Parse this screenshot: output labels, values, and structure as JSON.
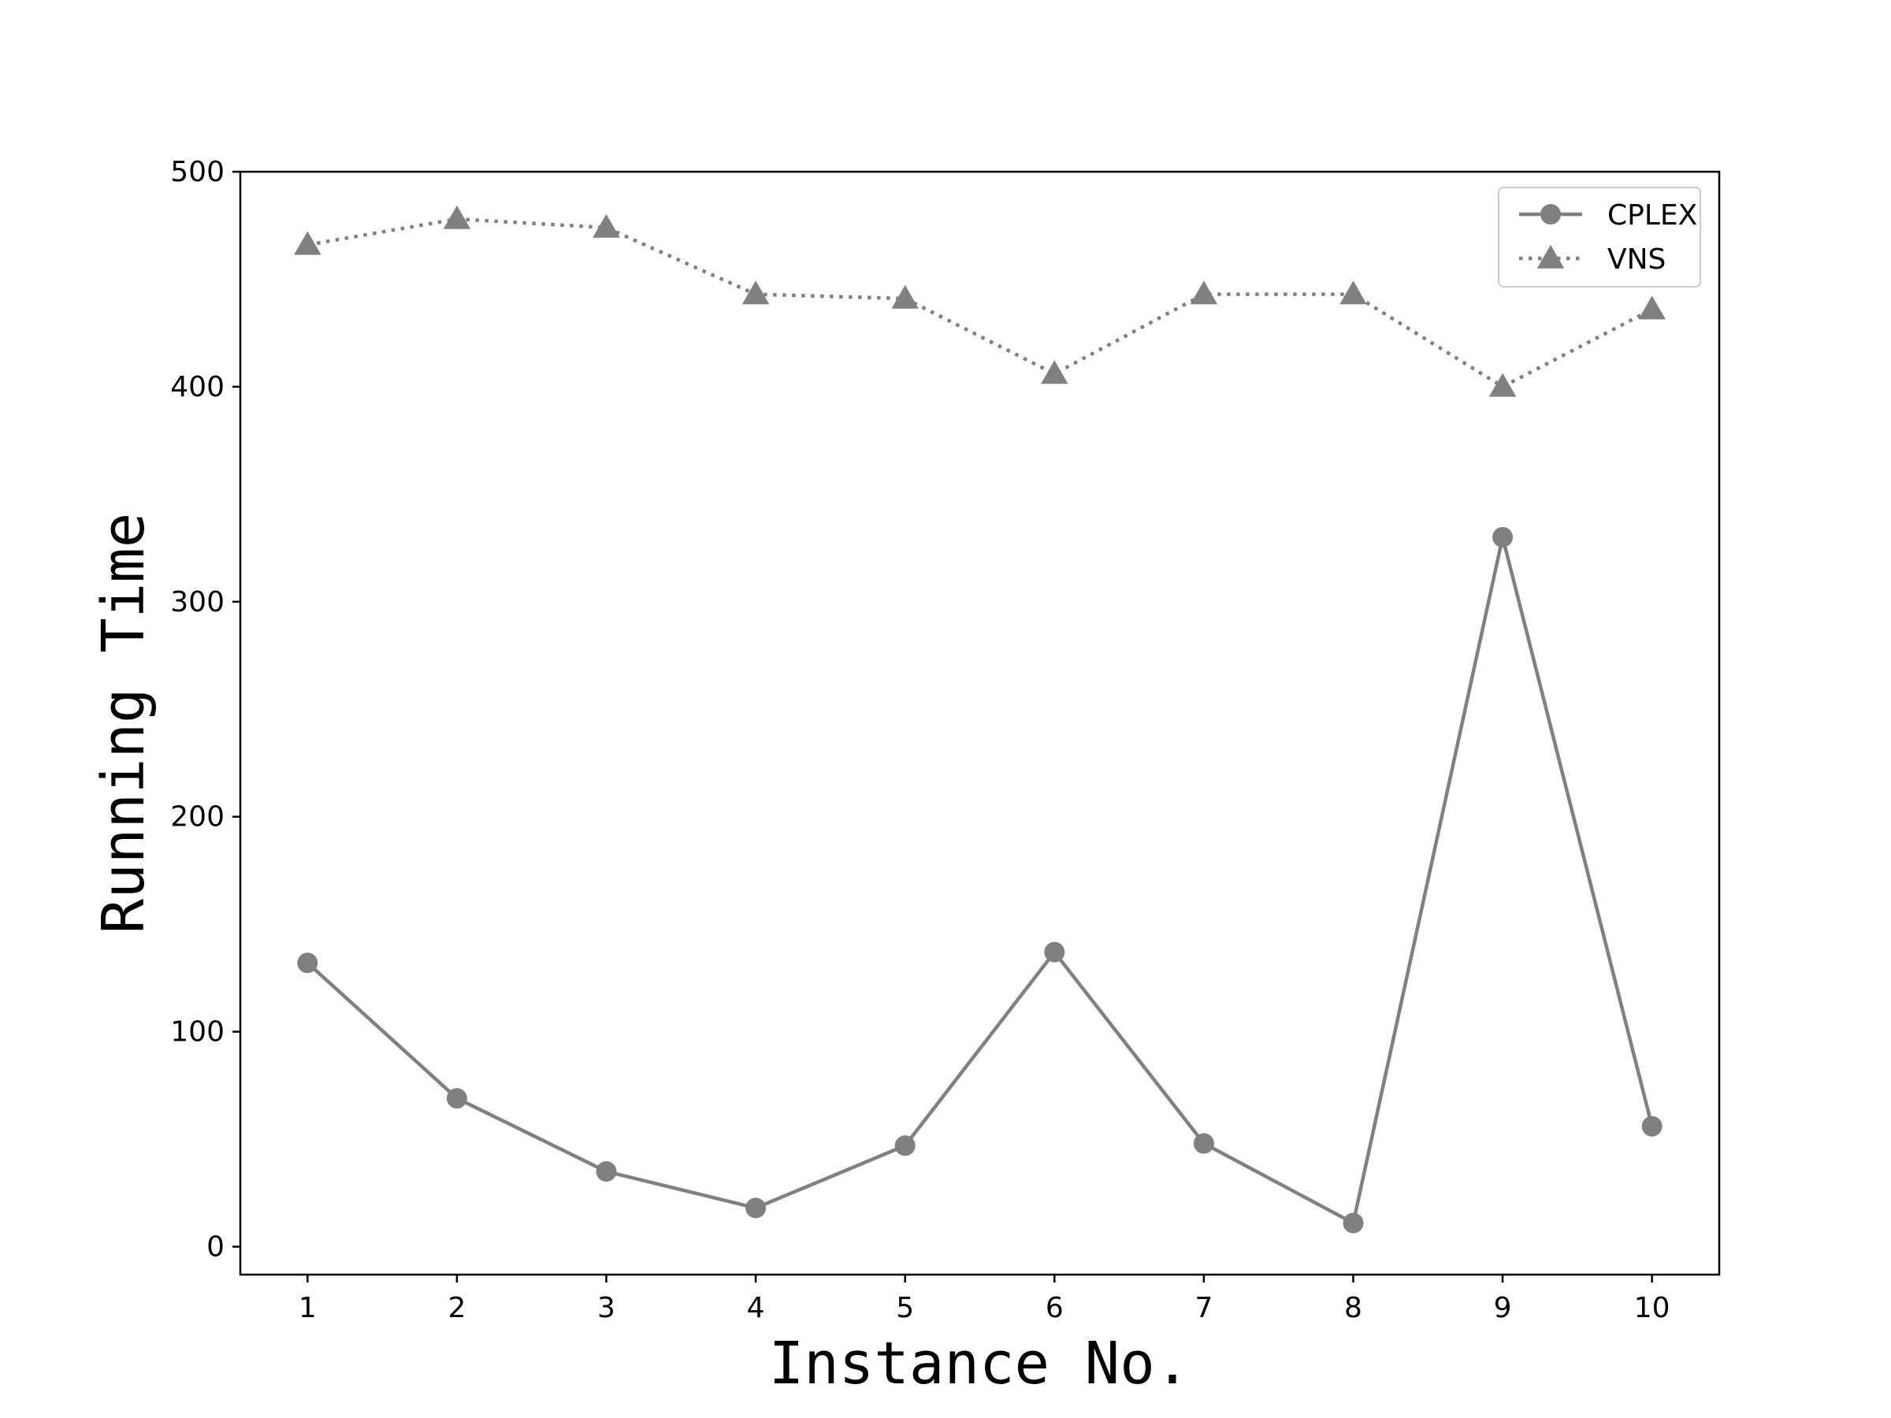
{
  "chart_data": {
    "type": "line",
    "title": "",
    "xlabel": "Instance No.",
    "ylabel": "Running Time",
    "x": [
      1,
      2,
      3,
      4,
      5,
      6,
      7,
      8,
      9,
      10
    ],
    "xticks": [
      "1",
      "2",
      "3",
      "4",
      "5",
      "6",
      "7",
      "8",
      "9",
      "10"
    ],
    "yticks": [
      0,
      100,
      200,
      300,
      400,
      500
    ],
    "xlim": [
      0.55,
      10.45
    ],
    "ylim": [
      -13,
      500
    ],
    "grid": false,
    "legend_position": "upper right",
    "series": [
      {
        "name": "CPLEX",
        "values": [
          132,
          69,
          35,
          18,
          47,
          137,
          48,
          11,
          330,
          56
        ],
        "marker": "circle",
        "line_style": "solid",
        "color": "#808080"
      },
      {
        "name": "VNS",
        "values": [
          466,
          478,
          474,
          443,
          441,
          406,
          443,
          443,
          400,
          436
        ],
        "marker": "triangle",
        "line_style": "dotted",
        "color": "#808080"
      }
    ]
  }
}
